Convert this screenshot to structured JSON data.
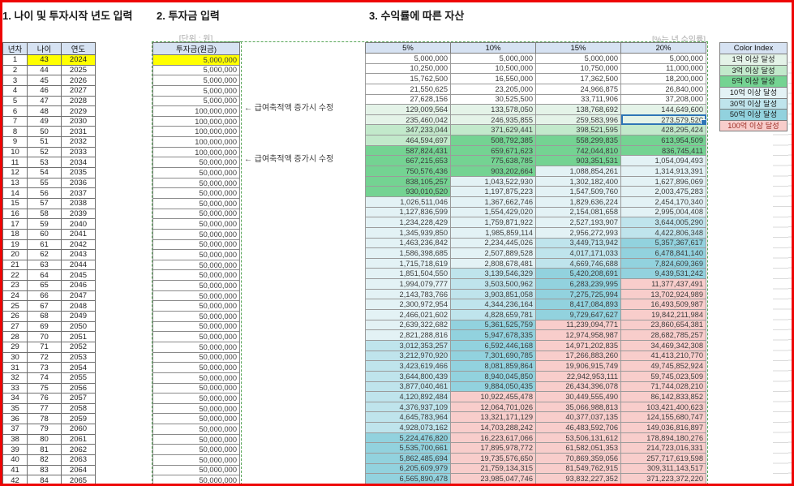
{
  "titles": {
    "section1": "1. 나이 및 투자시작 년도 입력",
    "section2": "2. 투자금 입력",
    "section3": "3. 수익률에 따른 자산"
  },
  "notes": {
    "unit": "[단위 : 원]",
    "rate": "[%는 년 수익률]",
    "salary_edit_1": "← 급여축적액 증가시 수정",
    "salary_edit_2": "← 급여축적액 증가시 수정"
  },
  "left_table": {
    "headers": [
      "년차",
      "나이",
      "연도"
    ],
    "rows": [
      [
        1,
        43,
        2024
      ],
      [
        2,
        44,
        2025
      ],
      [
        3,
        45,
        2026
      ],
      [
        4,
        46,
        2027
      ],
      [
        5,
        47,
        2028
      ],
      [
        6,
        48,
        2029
      ],
      [
        7,
        49,
        2030
      ],
      [
        8,
        50,
        2031
      ],
      [
        9,
        51,
        2032
      ],
      [
        10,
        52,
        2033
      ],
      [
        11,
        53,
        2034
      ],
      [
        12,
        54,
        2035
      ],
      [
        13,
        55,
        2036
      ],
      [
        14,
        56,
        2037
      ],
      [
        15,
        57,
        2038
      ],
      [
        16,
        58,
        2039
      ],
      [
        17,
        59,
        2040
      ],
      [
        18,
        60,
        2041
      ],
      [
        19,
        61,
        2042
      ],
      [
        20,
        62,
        2043
      ],
      [
        21,
        63,
        2044
      ],
      [
        22,
        64,
        2045
      ],
      [
        23,
        65,
        2046
      ],
      [
        24,
        66,
        2047
      ],
      [
        25,
        67,
        2048
      ],
      [
        26,
        68,
        2049
      ],
      [
        27,
        69,
        2050
      ],
      [
        28,
        70,
        2051
      ],
      [
        29,
        71,
        2052
      ],
      [
        30,
        72,
        2053
      ],
      [
        31,
        73,
        2054
      ],
      [
        32,
        74,
        2055
      ],
      [
        33,
        75,
        2056
      ],
      [
        34,
        76,
        2057
      ],
      [
        35,
        77,
        2058
      ],
      [
        36,
        78,
        2059
      ],
      [
        37,
        79,
        2060
      ],
      [
        38,
        80,
        2061
      ],
      [
        39,
        81,
        2062
      ],
      [
        40,
        82,
        2063
      ],
      [
        41,
        83,
        2064
      ],
      [
        42,
        84,
        2065
      ]
    ],
    "highlight_row": 1
  },
  "invest_table": {
    "header": "투자금(원금)",
    "values": [
      "5,000,000",
      "5,000,000",
      "5,000,000",
      "5,000,000",
      "5,000,000",
      "100,000,000",
      "100,000,000",
      "100,000,000",
      "100,000,000",
      "100,000,000",
      "50,000,000",
      "50,000,000",
      "50,000,000",
      "50,000,000",
      "50,000,000",
      "50,000,000",
      "50,000,000",
      "50,000,000",
      "50,000,000",
      "50,000,000",
      "50,000,000",
      "50,000,000",
      "50,000,000",
      "50,000,000",
      "50,000,000",
      "50,000,000",
      "50,000,000",
      "50,000,000",
      "50,000,000",
      "50,000,000",
      "50,000,000",
      "50,000,000",
      "50,000,000",
      "50,000,000",
      "50,000,000",
      "50,000,000",
      "50,000,000",
      "50,000,000",
      "50,000,000",
      "50,000,000",
      "50,000,000",
      "50,000,000"
    ],
    "highlight_row": 1,
    "annotated_rows": [
      6,
      11
    ]
  },
  "asset_table": {
    "headers": [
      "5%",
      "10%",
      "15%",
      "20%"
    ],
    "rows": [
      [
        "5,000,000",
        "5,000,000",
        "5,000,000",
        "5,000,000"
      ],
      [
        "10,250,000",
        "10,500,000",
        "10,750,000",
        "11,000,000"
      ],
      [
        "15,762,500",
        "16,550,000",
        "17,362,500",
        "18,200,000"
      ],
      [
        "21,550,625",
        "23,205,000",
        "24,966,875",
        "26,840,000"
      ],
      [
        "27,628,156",
        "30,525,500",
        "33,711,906",
        "37,208,000"
      ],
      [
        "129,009,564",
        "133,578,050",
        "138,768,692",
        "144,649,600"
      ],
      [
        "235,460,042",
        "246,935,855",
        "259,583,996",
        "273,579,520"
      ],
      [
        "347,233,044",
        "371,629,441",
        "398,521,595",
        "428,295,424"
      ],
      [
        "464,594,697",
        "508,792,385",
        "558,299,835",
        "613,954,509"
      ],
      [
        "587,824,431",
        "659,671,623",
        "742,044,810",
        "836,745,411"
      ],
      [
        "667,215,653",
        "775,638,785",
        "903,351,531",
        "1,054,094,493"
      ],
      [
        "750,576,436",
        "903,202,664",
        "1,088,854,261",
        "1,314,913,391"
      ],
      [
        "838,105,257",
        "1,043,522,930",
        "1,302,182,400",
        "1,627,896,069"
      ],
      [
        "930,010,520",
        "1,197,875,223",
        "1,547,509,760",
        "2,003,475,283"
      ],
      [
        "1,026,511,046",
        "1,367,662,746",
        "1,829,636,224",
        "2,454,170,340"
      ],
      [
        "1,127,836,599",
        "1,554,429,020",
        "2,154,081,658",
        "2,995,004,408"
      ],
      [
        "1,234,228,429",
        "1,759,871,922",
        "2,527,193,907",
        "3,644,005,290"
      ],
      [
        "1,345,939,850",
        "1,985,859,114",
        "2,956,272,993",
        "4,422,806,348"
      ],
      [
        "1,463,236,842",
        "2,234,445,026",
        "3,449,713,942",
        "5,357,367,617"
      ],
      [
        "1,586,398,685",
        "2,507,889,528",
        "4,017,171,033",
        "6,478,841,140"
      ],
      [
        "1,715,718,619",
        "2,808,678,481",
        "4,669,746,688",
        "7,824,609,369"
      ],
      [
        "1,851,504,550",
        "3,139,546,329",
        "5,420,208,691",
        "9,439,531,242"
      ],
      [
        "1,994,079,777",
        "3,503,500,962",
        "6,283,239,995",
        "11,377,437,491"
      ],
      [
        "2,143,783,766",
        "3,903,851,058",
        "7,275,725,994",
        "13,702,924,989"
      ],
      [
        "2,300,972,954",
        "4,344,236,164",
        "8,417,084,893",
        "16,493,509,987"
      ],
      [
        "2,466,021,602",
        "4,828,659,781",
        "9,729,647,627",
        "19,842,211,984"
      ],
      [
        "2,639,322,682",
        "5,361,525,759",
        "11,239,094,771",
        "23,860,654,381"
      ],
      [
        "2,821,288,816",
        "5,947,678,335",
        "12,974,958,987",
        "28,682,785,257"
      ],
      [
        "3,012,353,257",
        "6,592,446,168",
        "14,971,202,835",
        "34,469,342,308"
      ],
      [
        "3,212,970,920",
        "7,301,690,785",
        "17,266,883,260",
        "41,413,210,770"
      ],
      [
        "3,423,619,466",
        "8,081,859,864",
        "19,906,915,749",
        "49,745,852,924"
      ],
      [
        "3,644,800,439",
        "8,940,045,850",
        "22,942,953,111",
        "59,745,023,509"
      ],
      [
        "3,877,040,461",
        "9,884,050,435",
        "26,434,396,078",
        "71,744,028,210"
      ],
      [
        "4,120,892,484",
        "10,922,455,478",
        "30,449,555,490",
        "86,142,833,852"
      ],
      [
        "4,376,937,109",
        "12,064,701,026",
        "35,066,988,813",
        "103,421,400,623"
      ],
      [
        "4,645,783,964",
        "13,321,171,129",
        "40,377,037,135",
        "124,155,680,747"
      ],
      [
        "4,928,073,162",
        "14,703,288,242",
        "46,483,592,706",
        "149,036,816,897"
      ],
      [
        "5,224,476,820",
        "16,223,617,066",
        "53,506,131,612",
        "178,894,180,276"
      ],
      [
        "5,535,700,661",
        "17,895,978,772",
        "61,582,051,353",
        "214,723,016,331"
      ],
      [
        "5,862,485,694",
        "19,735,576,650",
        "70,869,359,056",
        "257,717,619,598"
      ],
      [
        "6,205,609,979",
        "21,759,134,315",
        "81,549,762,915",
        "309,311,143,517"
      ],
      [
        "6,565,890,478",
        "23,985,047,746",
        "93,832,227,352",
        "371,223,372,220"
      ]
    ]
  },
  "selection": {
    "row": 7,
    "col": 4,
    "value": "273,579,520"
  },
  "tiers": [
    {
      "min": 10000000000,
      "color": "#f8cdcb"
    },
    {
      "min": 5000000000,
      "color": "#92d2de"
    },
    {
      "min": 3000000000,
      "color": "#bfe4ec"
    },
    {
      "min": 1000000000,
      "color": "#e3f2f5"
    },
    {
      "min": 500000000,
      "color": "#74d392"
    },
    {
      "min": 300000000,
      "color": "#c2e9cb"
    },
    {
      "min": 100000000,
      "color": "#e4f3e8"
    },
    {
      "min": 0,
      "color": "#ffffff"
    }
  ],
  "legend": {
    "title": "Color Index",
    "items": [
      {
        "label": "1억 이상 달성",
        "color": "#e4f3e8",
        "text_color": "#1c1c1c"
      },
      {
        "label": "3억 이상 달성",
        "color": "#c2e9cb",
        "text_color": "#1c1c1c"
      },
      {
        "label": "5억 이상 달성",
        "color": "#74d392",
        "text_color": "#1c1c1c"
      },
      {
        "label": "10억 이상 달성",
        "color": "#e3f2f5",
        "text_color": "#1c1c1c"
      },
      {
        "label": "30억 이상 달성",
        "color": "#bfe4ec",
        "text_color": "#1c1c1c"
      },
      {
        "label": "50억 이상 달성",
        "color": "#92d2de",
        "text_color": "#1c1c1c"
      },
      {
        "label": "100억 이상 달성",
        "color": "#f8cdcb",
        "text_color": "#9c2b23"
      }
    ]
  },
  "colors": {
    "header_bg": "#d6e2f2",
    "highlight_yellow": "#ffff00",
    "selection_border": "#2e75b6",
    "marquee_green": "#56a556",
    "frame_red": "#ee0404"
  }
}
